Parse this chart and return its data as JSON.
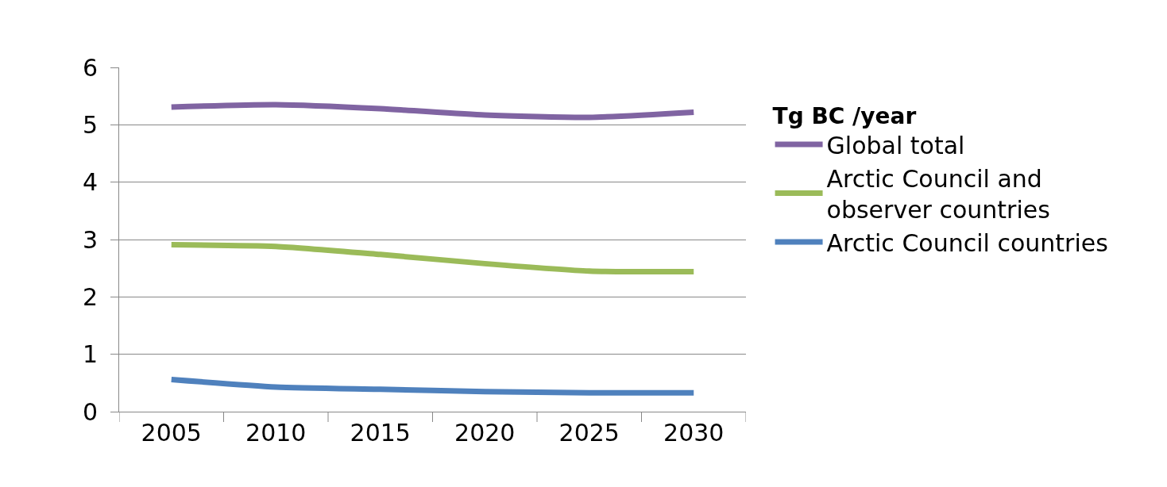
{
  "chart_data": {
    "type": "line",
    "legend_title": "Tg BC /year",
    "categories": [
      "2005",
      "2010",
      "2015",
      "2020",
      "2025",
      "2030"
    ],
    "series": [
      {
        "name": "Global total",
        "color": "#8064a2",
        "values": [
          5.31,
          5.35,
          5.28,
          5.17,
          5.13,
          5.22
        ]
      },
      {
        "name": "Arctic Council and observer countries",
        "color": "#9bbb59",
        "values": [
          2.91,
          2.88,
          2.74,
          2.58,
          2.45,
          2.44
        ]
      },
      {
        "name": "Arctic Council countries",
        "color": "#4f81bd",
        "values": [
          0.56,
          0.43,
          0.39,
          0.35,
          0.33,
          0.33
        ]
      }
    ],
    "ylim": [
      0,
      6
    ],
    "yticks": [
      0,
      1,
      2,
      3,
      4,
      5,
      6
    ],
    "grid": "y",
    "legend": "right",
    "marker": "none",
    "line_style": "solid"
  }
}
